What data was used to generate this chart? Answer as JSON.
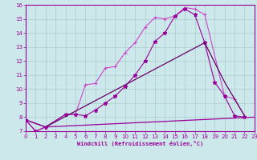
{
  "xlabel": "Windchill (Refroidissement éolien,°C)",
  "bg_color": "#cce8ea",
  "grid_color": "#aacccc",
  "axis_color": "#990099",
  "xlim": [
    0,
    23
  ],
  "ylim": [
    7,
    16
  ],
  "xticks": [
    0,
    1,
    2,
    3,
    4,
    5,
    6,
    7,
    8,
    9,
    10,
    11,
    12,
    13,
    14,
    15,
    16,
    17,
    18,
    19,
    20,
    21,
    22,
    23
  ],
  "yticks": [
    7,
    8,
    9,
    10,
    11,
    12,
    13,
    14,
    15,
    16
  ],
  "series": [
    {
      "x": [
        0,
        1,
        2,
        4,
        5,
        6,
        7,
        8,
        9,
        10,
        11,
        12,
        13,
        14,
        15,
        16,
        17,
        18,
        20,
        21,
        22
      ],
      "y": [
        7.8,
        7.0,
        7.3,
        8.2,
        8.2,
        10.3,
        10.4,
        11.5,
        11.6,
        12.6,
        13.3,
        14.4,
        15.1,
        15.0,
        15.2,
        15.8,
        15.7,
        15.3,
        9.5,
        9.3,
        8.1
      ],
      "color": "#cc44cc",
      "marker": "+",
      "markersize": 3.5,
      "lw": 0.8
    },
    {
      "x": [
        0,
        1,
        2,
        4,
        5,
        6,
        7,
        8,
        9,
        10,
        11,
        12,
        13,
        14,
        15,
        16,
        17,
        18,
        19,
        20,
        21,
        22
      ],
      "y": [
        7.8,
        7.0,
        7.3,
        8.2,
        8.2,
        8.1,
        8.5,
        9.0,
        9.5,
        10.2,
        11.0,
        12.0,
        13.4,
        14.0,
        15.2,
        15.7,
        15.3,
        13.3,
        10.5,
        9.5,
        8.1,
        8.0
      ],
      "color": "#990099",
      "marker": "*",
      "markersize": 3.5,
      "lw": 0.8
    },
    {
      "x": [
        0,
        2,
        18,
        20,
        22
      ],
      "y": [
        7.8,
        7.3,
        13.3,
        10.5,
        8.1
      ],
      "color": "#660066",
      "marker": null,
      "markersize": 0,
      "lw": 0.9
    },
    {
      "x": [
        0,
        2,
        23
      ],
      "y": [
        7.8,
        7.3,
        8.0
      ],
      "color": "#990099",
      "marker": null,
      "markersize": 0,
      "lw": 0.9
    }
  ]
}
